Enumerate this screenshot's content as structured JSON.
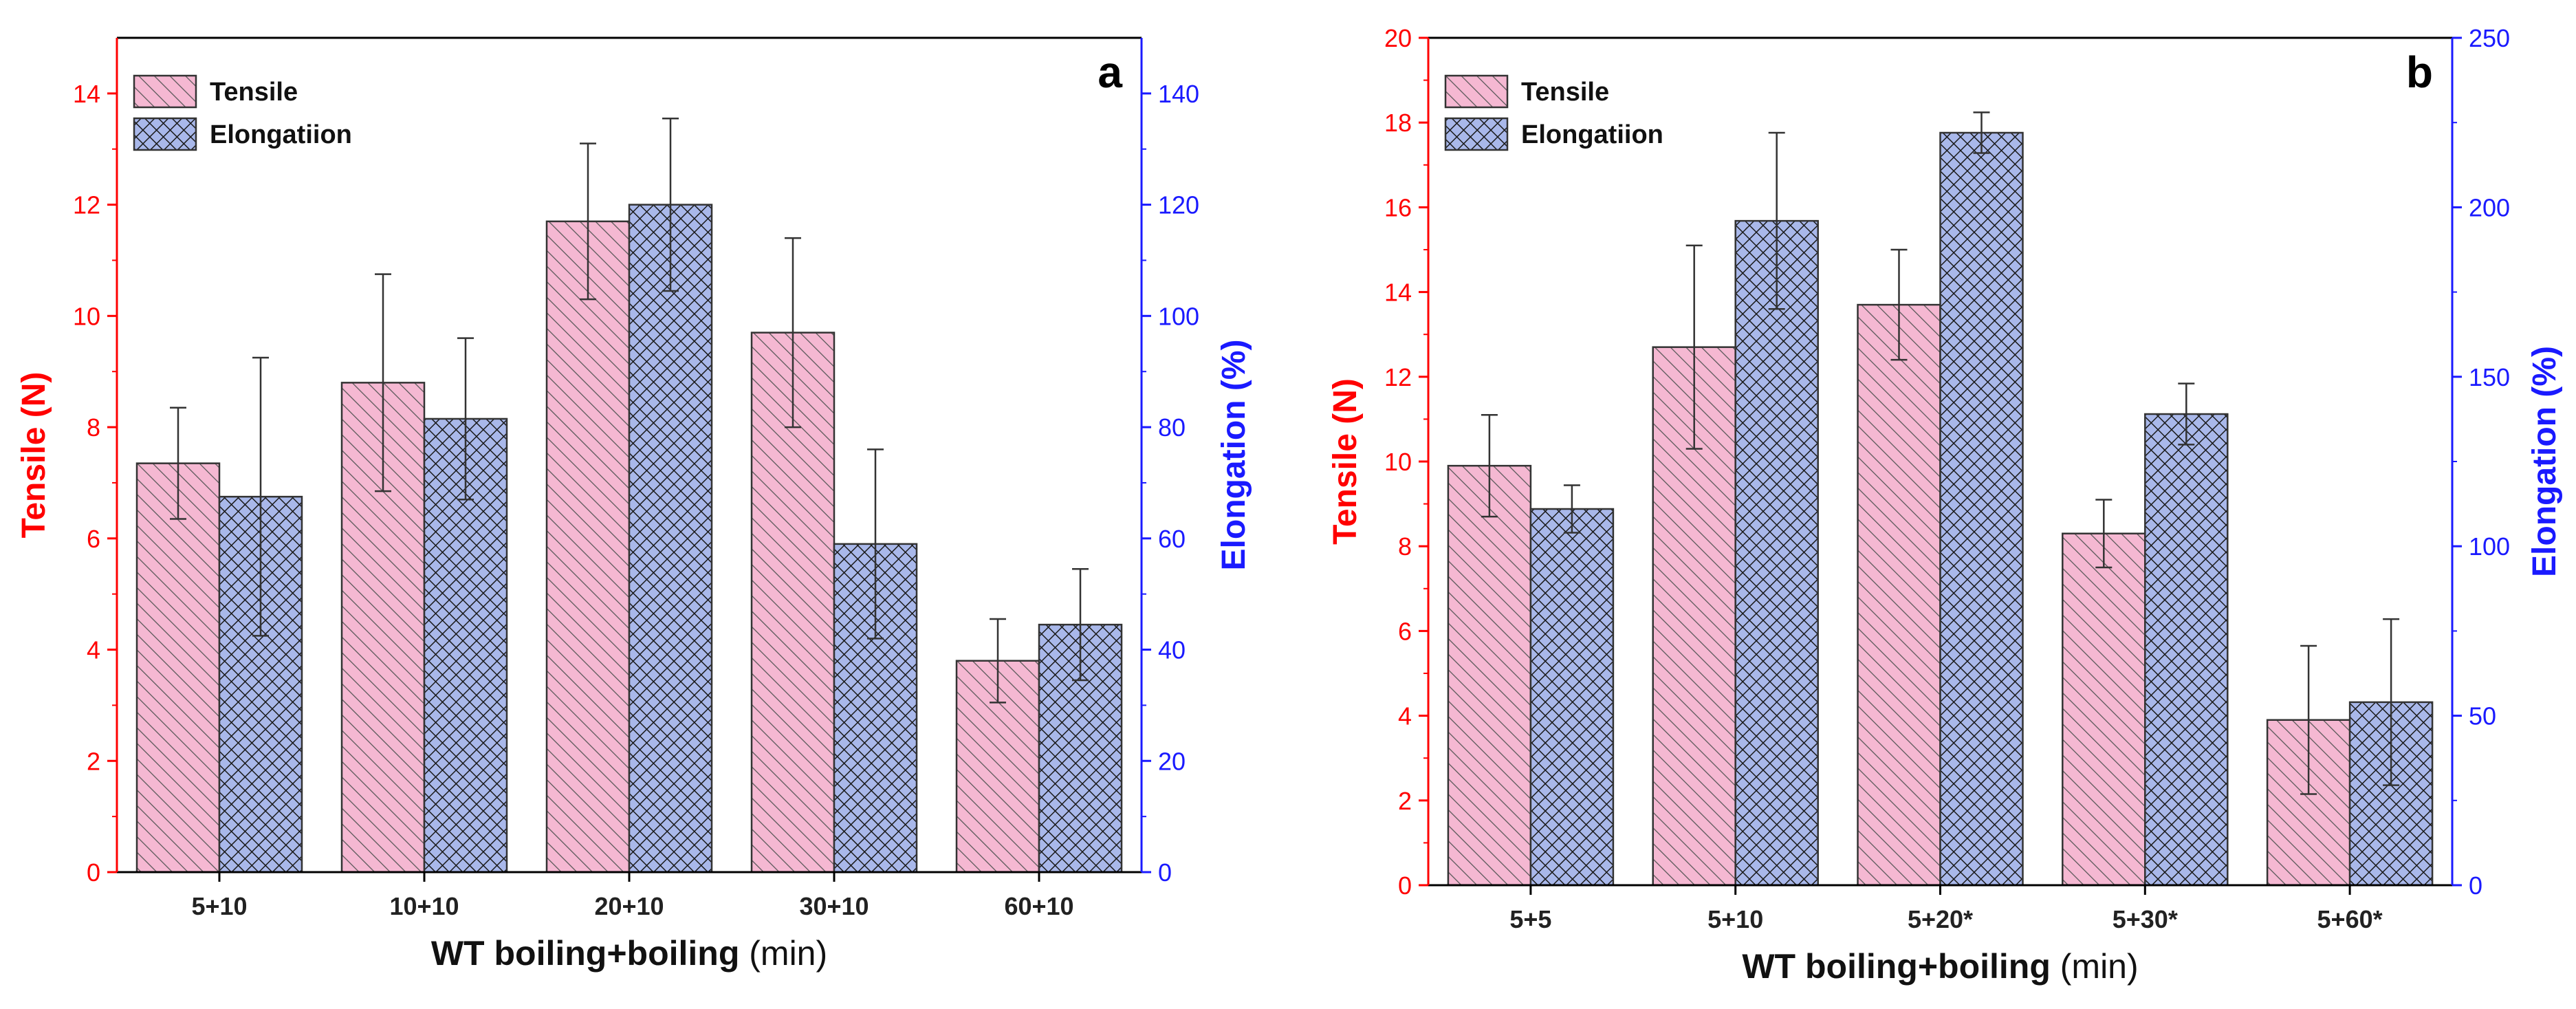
{
  "chart_data": [
    {
      "type": "bar",
      "panel_label": "a",
      "categories": [
        "5+10",
        "10+10",
        "20+10",
        "30+10",
        "60+10"
      ],
      "xlabel": "WT boiling+boiling",
      "xlabel_unit": "(min)",
      "ylabel_left": "Tensile (N)",
      "ylabel_right": "Elongation (%)",
      "ylim_left": [
        0,
        15
      ],
      "yticks_left": [
        0,
        2,
        4,
        6,
        8,
        10,
        12,
        14
      ],
      "ylim_right": [
        0,
        150
      ],
      "yticks_right": [
        0,
        20,
        40,
        60,
        80,
        100,
        120,
        140
      ],
      "legend_position": "top-left",
      "series": [
        {
          "name": "Tensile",
          "axis": "left",
          "values": [
            7.35,
            8.8,
            11.7,
            9.7,
            3.8
          ],
          "errors": [
            1.0,
            1.95,
            1.4,
            1.7,
            0.75
          ]
        },
        {
          "name": "Elongatiion",
          "axis": "right",
          "values": [
            67.5,
            81.5,
            120,
            59,
            44.5
          ],
          "errors": [
            25,
            14.5,
            15.5,
            17,
            10
          ]
        }
      ]
    },
    {
      "type": "bar",
      "panel_label": "b",
      "categories": [
        "5+5",
        "5+10",
        "5+20*",
        "5+30*",
        "5+60*"
      ],
      "xlabel": "WT boiling+boiling",
      "xlabel_unit": "(min)",
      "ylabel_left": "Tensile (N)",
      "ylabel_right": "Elongation (%)",
      "ylim_left": [
        0,
        20
      ],
      "yticks_left": [
        0,
        2,
        4,
        6,
        8,
        10,
        12,
        14,
        16,
        18,
        20
      ],
      "ylim_right": [
        0,
        250
      ],
      "yticks_right": [
        0,
        50,
        100,
        150,
        200,
        250
      ],
      "legend_position": "top-left",
      "series": [
        {
          "name": "Tensile",
          "axis": "left",
          "values": [
            9.9,
            12.7,
            13.7,
            8.3,
            3.9
          ],
          "errors": [
            1.2,
            2.4,
            1.3,
            0.8,
            1.75
          ]
        },
        {
          "name": "Elongatiion",
          "axis": "right",
          "values": [
            111,
            196,
            222,
            139,
            54
          ],
          "errors": [
            7,
            26,
            6,
            9,
            24.5
          ]
        }
      ]
    }
  ],
  "colors": {
    "left_axis": "#ff0000",
    "right_axis": "#1a1aff",
    "tensile_fill": "#f5b8d2",
    "tensile_hatch": "#555555",
    "elongation_fill": "#a9b8ea",
    "elongation_hatch": "#1a1a1a",
    "frame": "#000000",
    "errorbar": "#333333"
  }
}
